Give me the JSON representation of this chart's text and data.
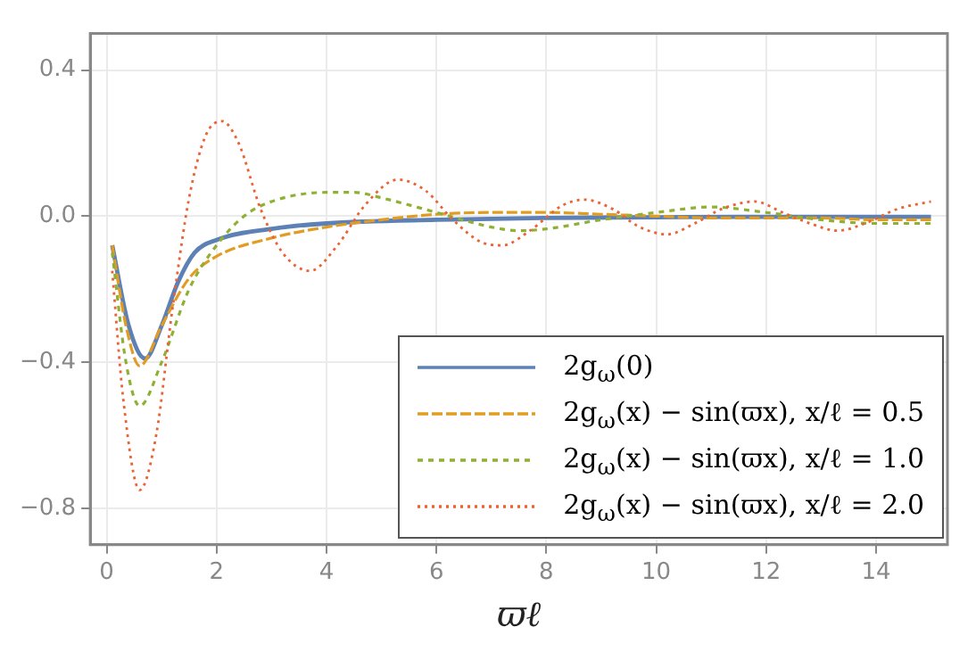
{
  "chart_data": {
    "type": "line",
    "xlabel": "ϖℓ",
    "xlim": [
      -0.3,
      15.3
    ],
    "ylim": [
      -0.9,
      0.5
    ],
    "xticks": [
      0,
      2,
      4,
      6,
      8,
      10,
      12,
      14
    ],
    "yticks": [
      {
        "value": -0.8,
        "label": "−0.8"
      },
      {
        "value": -0.4,
        "label": "−0.4"
      },
      {
        "value": 0,
        "label": "0.0"
      },
      {
        "value": 0.4,
        "label": "0.4"
      }
    ],
    "grid": true,
    "legend": "bottom right",
    "marker": "none",
    "series": [
      {
        "name": "2g$_{ω}$(0)",
        "color": "#5e81b5",
        "line_style": "solid",
        "x": [
          0.1,
          0.4,
          0.7,
          1.0,
          1.3,
          1.6,
          2,
          3,
          4,
          6,
          8,
          10,
          12,
          15
        ],
        "values": [
          -0.08,
          -0.3,
          -0.39,
          -0.3,
          -0.18,
          -0.1,
          -0.065,
          -0.035,
          -0.02,
          -0.01,
          -0.005,
          -0.003,
          -0.002,
          -0.002
        ]
      },
      {
        "name": "2g$_{ω}$(x) − sin(ϖx),  x/ℓ = 0.5",
        "color": "#e19c24",
        "line_style": "dashed",
        "x": [
          0.1,
          0.35,
          0.6,
          1.0,
          1.5,
          2,
          3,
          4,
          5,
          6,
          7,
          8,
          9,
          10,
          11,
          12,
          13,
          14,
          15
        ],
        "values": [
          -0.08,
          -0.3,
          -0.41,
          -0.3,
          -0.17,
          -0.11,
          -0.06,
          -0.03,
          -0.01,
          0.005,
          0.01,
          0.01,
          0.005,
          0,
          -0.005,
          -0.005,
          -0.005,
          -0.01,
          -0.01
        ]
      },
      {
        "name": "2g$_{ω}$(x) − sin(ϖx),  x/ℓ = 1.0",
        "color": "#8fb032",
        "line_style": "dashed",
        "x": [
          0.1,
          0.35,
          0.6,
          1.0,
          1.5,
          2,
          2.5,
          3,
          4,
          4.5,
          5,
          6,
          7,
          7.5,
          8,
          9,
          10,
          11,
          12,
          13,
          14,
          15
        ],
        "values": [
          -0.1,
          -0.4,
          -0.52,
          -0.4,
          -0.2,
          -0.08,
          0,
          0.04,
          0.065,
          0.065,
          0.05,
          0.01,
          -0.03,
          -0.04,
          -0.035,
          -0.01,
          0.01,
          0.025,
          0.01,
          -0.01,
          -0.02,
          -0.02
        ]
      },
      {
        "name": "2g$_{ω}$(x) − sin(ϖx),  x/ℓ = 2.0",
        "color": "#eb6235",
        "line_style": "dotted",
        "x": [
          0.1,
          0.3,
          0.6,
          0.9,
          1.2,
          1.5,
          1.8,
          2.1,
          2.4,
          2.8,
          3.2,
          3.7,
          4.2,
          4.7,
          5.3,
          5.8,
          6.3,
          6.8,
          7.2,
          7.7,
          8.3,
          8.7,
          9.2,
          9.7,
          10.2,
          10.7,
          11.2,
          11.8,
          12.3,
          12.8,
          13.3,
          13.8,
          14.4,
          15
        ],
        "values": [
          -0.15,
          -0.5,
          -0.75,
          -0.6,
          -0.25,
          0.05,
          0.22,
          0.26,
          0.2,
          0.02,
          -0.1,
          -0.15,
          -0.08,
          0.03,
          0.1,
          0.07,
          -0.01,
          -0.07,
          -0.08,
          -0.04,
          0.03,
          0.045,
          0.02,
          -0.03,
          -0.05,
          -0.02,
          0.02,
          0.04,
          0.01,
          -0.02,
          -0.04,
          -0.02,
          0.02,
          0.04
        ]
      }
    ]
  }
}
